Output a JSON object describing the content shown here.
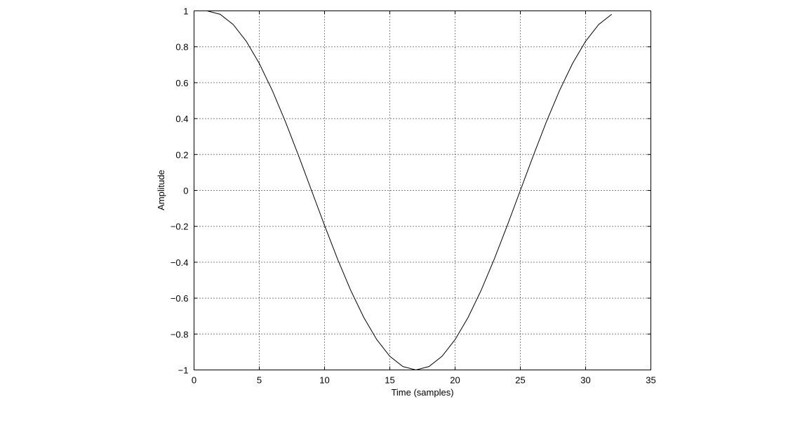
{
  "chart_data": {
    "type": "line",
    "title": "",
    "xlabel": "Time (samples)",
    "ylabel": "Amplitude",
    "xlim": [
      0,
      35
    ],
    "ylim": [
      -1,
      1
    ],
    "grid": true,
    "x_ticks": [
      0,
      5,
      10,
      15,
      20,
      25,
      30,
      35
    ],
    "x_tick_labels": [
      "0",
      "5",
      "10",
      "15",
      "20",
      "25",
      "30",
      "35"
    ],
    "y_ticks": [
      1,
      0.8,
      0.6,
      0.4,
      0.2,
      0,
      -0.2,
      -0.4,
      -0.6,
      -0.8,
      -1
    ],
    "y_tick_labels": [
      "1",
      "0.8",
      "0.6",
      "0.4",
      "0.2",
      "0",
      "−0.2",
      "−0.4",
      "−0.6",
      "−0.8",
      "−1"
    ],
    "series": [
      {
        "color": "#000000",
        "x": [
          1,
          2,
          3,
          4,
          5,
          6,
          7,
          8,
          9,
          10,
          11,
          12,
          13,
          14,
          15,
          16,
          17,
          18,
          19,
          20,
          21,
          22,
          23,
          24,
          25,
          26,
          27,
          28,
          29,
          30,
          31,
          32
        ],
        "y": [
          1.0,
          0.981,
          0.924,
          0.831,
          0.707,
          0.556,
          0.383,
          0.195,
          0.0,
          -0.195,
          -0.383,
          -0.556,
          -0.707,
          -0.831,
          -0.924,
          -0.981,
          -1.0,
          -0.981,
          -0.924,
          -0.831,
          -0.707,
          -0.556,
          -0.383,
          -0.195,
          0.0,
          0.195,
          0.383,
          0.556,
          0.707,
          0.831,
          0.924,
          0.981
        ]
      }
    ]
  }
}
